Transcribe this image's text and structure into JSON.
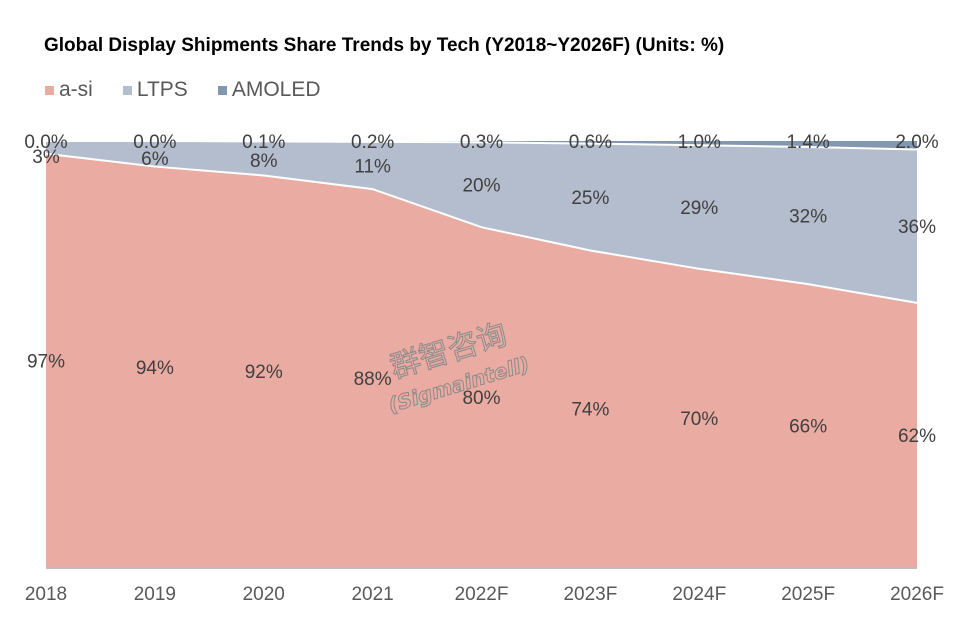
{
  "chart_data": {
    "type": "area",
    "stacked": "percent",
    "title": "Global Display Shipments Share Trends by Tech (Y2018~Y2026F) (Units: %)",
    "xlabel": "",
    "ylabel": "",
    "ylim": [
      0,
      100
    ],
    "grid": false,
    "legend_position": "top-left",
    "categories": [
      "2018",
      "2019",
      "2020",
      "2021",
      "2022F",
      "2023F",
      "2024F",
      "2025F",
      "2026F"
    ],
    "series": [
      {
        "name": "a-si",
        "color": "#eaaba2",
        "values": [
          97,
          94,
          92,
          88,
          80,
          74,
          70,
          66,
          62
        ],
        "labels": [
          "97%",
          "94%",
          "92%",
          "88%",
          "80%",
          "74%",
          "70%",
          "66%",
          "62%"
        ]
      },
      {
        "name": "LTPS",
        "color": "#b4bdcd",
        "values": [
          3,
          6,
          8,
          11,
          20,
          25,
          29,
          32,
          36
        ],
        "labels": [
          "3%",
          "6%",
          "8%",
          "11%",
          "20%",
          "25%",
          "29%",
          "32%",
          "36%"
        ]
      },
      {
        "name": "AMOLED",
        "color": "#8497b0",
        "values": [
          0.0,
          0.0,
          0.1,
          0.2,
          0.3,
          0.6,
          1.0,
          1.4,
          2.0
        ],
        "labels": [
          "0.0%",
          "0.0%",
          "0.1%",
          "0.2%",
          "0.3%",
          "0.6%",
          "1.0%",
          "1.4%",
          "2.0%"
        ]
      }
    ],
    "watermark": {
      "line1": "群智咨询",
      "line2": "(Sigmaintell)"
    }
  }
}
